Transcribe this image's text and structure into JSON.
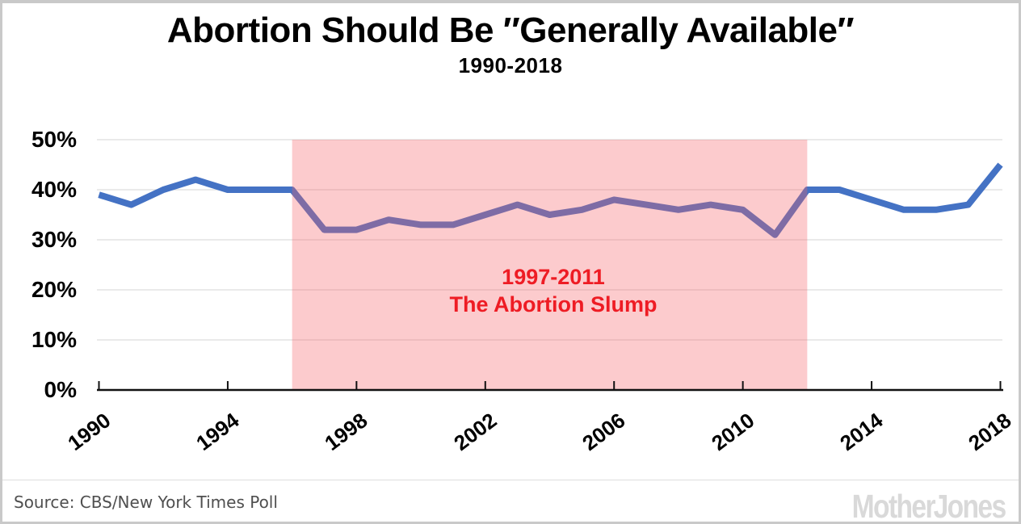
{
  "header": {
    "title": "Abortion Should Be ″Generally Available″",
    "subtitle": "1990-2018"
  },
  "footer": {
    "source": "Source: CBS/New York Times Poll",
    "logo": "Mother Jones"
  },
  "colors": {
    "line": "#4472c4",
    "band": "#f56167",
    "band_opacity": 0.33,
    "annotation": "#ee1c24",
    "grid": "#e3e3e3",
    "axis": "#111111",
    "label": "#000000",
    "source_text": "#4f4f4f",
    "logo_gray": "#d9d9d9",
    "frame_border": "#c9c9c9"
  },
  "chart_data": {
    "type": "line",
    "title": "Abortion Should Be ″Generally Available″",
    "subtitle": "1990-2018",
    "xlabel": "",
    "ylabel": "",
    "x": [
      1990,
      1991,
      1992,
      1993,
      1994,
      1995,
      1996,
      1997,
      1998,
      1999,
      2000,
      2001,
      2002,
      2003,
      2004,
      2005,
      2006,
      2007,
      2008,
      2009,
      2010,
      2011,
      2012,
      2013,
      2014,
      2015,
      2016,
      2017,
      2018
    ],
    "values": [
      39,
      37,
      40,
      42,
      40,
      40,
      40,
      32,
      32,
      34,
      33,
      33,
      35,
      37,
      35,
      36,
      38,
      37,
      36,
      37,
      36,
      31,
      40,
      40,
      38,
      36,
      36,
      37,
      45
    ],
    "ylim": [
      0,
      50
    ],
    "xlim": [
      1990,
      2018
    ],
    "grid": true,
    "legend": false,
    "ytick_values": [
      0,
      10,
      20,
      30,
      40,
      50
    ],
    "ytick_labels": [
      "0%",
      "10%",
      "20%",
      "30%",
      "40%",
      "50%"
    ],
    "xtick_values": [
      1990,
      1994,
      1998,
      2002,
      2006,
      2010,
      2014,
      2018
    ],
    "xtick_labels": [
      "1990",
      "1994",
      "1998",
      "2002",
      "2006",
      "2010",
      "2014",
      "2018"
    ],
    "highlight_band": {
      "x_from": 1996,
      "x_to": 2012,
      "label_line1": "1997-2011",
      "label_line2": "The Abortion Slump"
    }
  }
}
